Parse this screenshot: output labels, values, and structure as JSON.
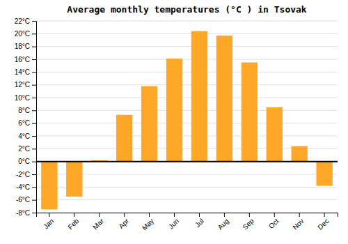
{
  "chart_data": {
    "type": "bar",
    "title": "Average monthly temperatures (°C ) in Tsovak",
    "categories": [
      "Jan",
      "Feb",
      "Mar",
      "Apr",
      "May",
      "Jun",
      "Jul",
      "Aug",
      "Sep",
      "Oct",
      "Nov",
      "Dec"
    ],
    "values": [
      -7.5,
      -5.5,
      0.2,
      7.3,
      11.8,
      16.1,
      20.4,
      19.7,
      15.5,
      8.5,
      2.4,
      -3.8
    ],
    "color": "#FFA726",
    "ylim": [
      -8,
      22
    ],
    "yticks": [
      {
        "value": -8,
        "label": "-8°C"
      },
      {
        "value": -6,
        "label": "-6°C"
      },
      {
        "value": -4,
        "label": "-4°C"
      },
      {
        "value": -2,
        "label": "-2°C"
      },
      {
        "value": 0,
        "label": "0°C"
      },
      {
        "value": 2,
        "label": "2°C"
      },
      {
        "value": 4,
        "label": "4°C"
      },
      {
        "value": 6,
        "label": "6°C"
      },
      {
        "value": 8,
        "label": "8°C"
      },
      {
        "value": 10,
        "label": "10°C"
      },
      {
        "value": 12,
        "label": "12°C"
      },
      {
        "value": 14,
        "label": "14°C"
      },
      {
        "value": 16,
        "label": "16°C"
      },
      {
        "value": 18,
        "label": "18°C"
      },
      {
        "value": 20,
        "label": "20°C"
      },
      {
        "value": 22,
        "label": "22°C"
      }
    ],
    "grid": true
  }
}
